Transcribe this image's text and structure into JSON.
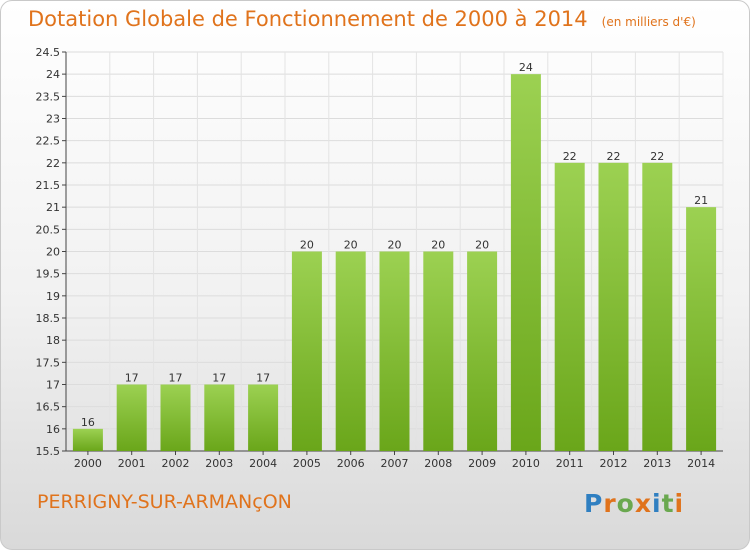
{
  "header": {
    "title": "Dotation Globale de Fonctionnement de 2000 à 2014",
    "unit": "(en milliers d'€)"
  },
  "footer": {
    "commune": "PERRIGNY-SUR-ARMANçON",
    "logo_text": "Proxiti",
    "logo_letters": [
      {
        "char": "P",
        "color": "#2f7fc1"
      },
      {
        "char": "r",
        "color": "#e0731c"
      },
      {
        "char": "o",
        "color": "#6aa84f"
      },
      {
        "char": "x",
        "color": "#e0731c"
      },
      {
        "char": "i",
        "color": "#2f7fc1"
      },
      {
        "char": "t",
        "color": "#6aa84f"
      },
      {
        "char": "i",
        "color": "#e0731c"
      }
    ]
  },
  "colors": {
    "title": "#e0731c",
    "bar_light": "#9cd152",
    "bar_dark": "#6aa61a"
  },
  "chart_data": {
    "type": "bar",
    "title": "Dotation Globale de Fonctionnement de 2000 à 2014",
    "subtitle": "(en milliers d'€)",
    "categories": [
      "2000",
      "2001",
      "2002",
      "2003",
      "2004",
      "2005",
      "2006",
      "2007",
      "2008",
      "2009",
      "2010",
      "2011",
      "2012",
      "2013",
      "2014"
    ],
    "values": [
      16,
      17,
      17,
      17,
      17,
      20,
      20,
      20,
      20,
      20,
      24,
      22,
      22,
      22,
      21
    ],
    "ylim": [
      15.5,
      24.5
    ],
    "yticks": [
      "15.5",
      "16",
      "16.5",
      "17",
      "17.5",
      "18",
      "18.5",
      "19",
      "19.5",
      "20",
      "20.5",
      "21",
      "21.5",
      "22",
      "22.5",
      "23",
      "23.5",
      "24",
      "24.5"
    ],
    "grid": true,
    "xlabel": "",
    "ylabel": ""
  }
}
